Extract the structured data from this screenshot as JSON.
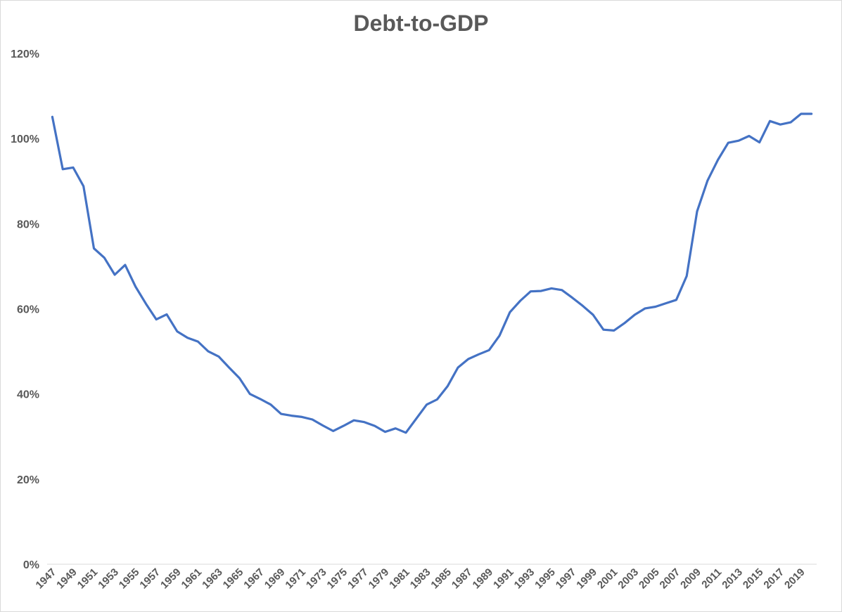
{
  "chart_data": {
    "type": "line",
    "title": "Debt-to-GDP",
    "xlabel": "",
    "ylabel": "",
    "ylim": [
      0,
      1.2
    ],
    "ytick_labels": [
      "0%",
      "20%",
      "40%",
      "60%",
      "80%",
      "100%",
      "120%"
    ],
    "grid": false,
    "legend": "none",
    "line_color": "#4472c4",
    "x": [
      1947,
      1948,
      1949,
      1950,
      1951,
      1952,
      1953,
      1954,
      1955,
      1956,
      1957,
      1958,
      1959,
      1960,
      1961,
      1962,
      1963,
      1964,
      1965,
      1966,
      1967,
      1968,
      1969,
      1970,
      1971,
      1972,
      1973,
      1974,
      1975,
      1976,
      1977,
      1978,
      1979,
      1980,
      1981,
      1982,
      1983,
      1984,
      1985,
      1986,
      1987,
      1988,
      1989,
      1990,
      1991,
      1992,
      1993,
      1994,
      1995,
      1996,
      1997,
      1998,
      1999,
      2000,
      2001,
      2002,
      2003,
      2004,
      2005,
      2006,
      2007,
      2008,
      2009,
      2010,
      2011,
      2012,
      2013,
      2014,
      2015,
      2016,
      2017,
      2018,
      2019,
      2020
    ],
    "xtick_labels": [
      "1947",
      "1949",
      "1951",
      "1953",
      "1955",
      "1957",
      "1959",
      "1961",
      "1963",
      "1965",
      "1967",
      "1969",
      "1971",
      "1973",
      "1975",
      "1977",
      "1979",
      "1981",
      "1983",
      "1985",
      "1987",
      "1989",
      "1991",
      "1993",
      "1995",
      "1997",
      "1999",
      "2001",
      "2003",
      "2005",
      "2007",
      "2009",
      "2011",
      "2013",
      "2015",
      "2017",
      "2019"
    ],
    "series": [
      {
        "values": [
          1.051,
          0.928,
          0.932,
          0.888,
          0.742,
          0.72,
          0.68,
          0.703,
          0.652,
          0.612,
          0.575,
          0.587,
          0.547,
          0.532,
          0.523,
          0.5,
          0.488,
          0.462,
          0.437,
          0.4,
          0.388,
          0.375,
          0.353,
          0.349,
          0.346,
          0.34,
          0.326,
          0.313,
          0.325,
          0.338,
          0.334,
          0.325,
          0.311,
          0.319,
          0.309,
          0.342,
          0.375,
          0.387,
          0.418,
          0.462,
          0.482,
          0.493,
          0.503,
          0.537,
          0.592,
          0.619,
          0.641,
          0.642,
          0.648,
          0.644,
          0.626,
          0.607,
          0.586,
          0.551,
          0.549,
          0.566,
          0.586,
          0.601,
          0.605,
          0.613,
          0.621,
          0.677,
          0.829,
          0.901,
          0.95,
          0.99,
          0.995,
          1.006,
          0.991,
          1.041,
          1.033,
          1.038,
          1.058,
          1.058
        ]
      }
    ]
  }
}
